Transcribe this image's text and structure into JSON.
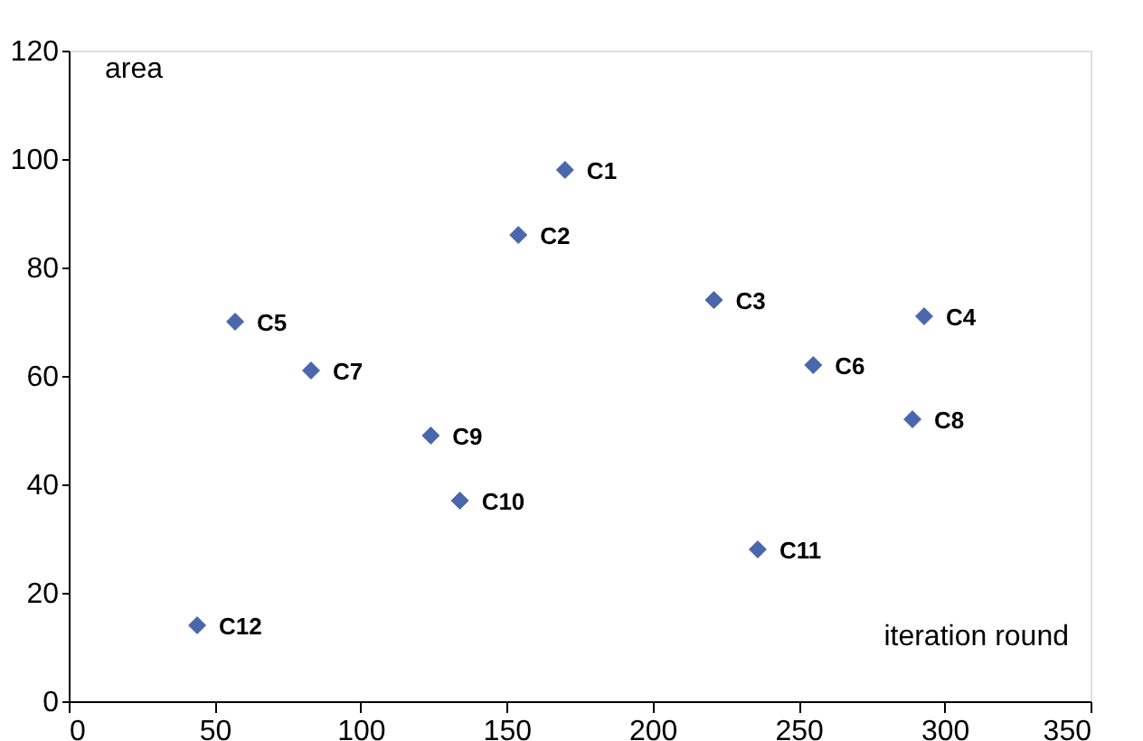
{
  "chart_data": {
    "type": "scatter",
    "xlabel": "iteration round",
    "ylabel": "area",
    "x": [
      170,
      154,
      221,
      293,
      57,
      255,
      83,
      289,
      124,
      134,
      236,
      44
    ],
    "series": [
      {
        "color": "#4a66ac",
        "values": [
          98,
          86,
          74,
          71,
          70,
          62,
          61,
          52,
          49,
          37,
          28,
          14
        ]
      }
    ],
    "annotations": [
      {
        "text": "C1",
        "x": 170,
        "y": 98
      },
      {
        "text": "C2",
        "x": 154,
        "y": 86
      },
      {
        "text": "C3",
        "x": 221,
        "y": 74
      },
      {
        "text": "C4",
        "x": 293,
        "y": 71
      },
      {
        "text": "C5",
        "x": 57,
        "y": 70
      },
      {
        "text": "C6",
        "x": 255,
        "y": 62
      },
      {
        "text": "C7",
        "x": 83,
        "y": 61
      },
      {
        "text": "C8",
        "x": 289,
        "y": 52
      },
      {
        "text": "C9",
        "x": 124,
        "y": 49
      },
      {
        "text": "C10",
        "x": 134,
        "y": 37
      },
      {
        "text": "C11",
        "x": 236,
        "y": 28
      },
      {
        "text": "C12",
        "x": 44,
        "y": 14
      }
    ],
    "xlim": [
      0,
      350
    ],
    "xticks": [
      0,
      50,
      100,
      150,
      200,
      250,
      300,
      350
    ],
    "ylim": [
      0,
      120
    ],
    "yticks": [
      0,
      20,
      40,
      60,
      80,
      100,
      120
    ],
    "marker": "diamond",
    "grid": false
  }
}
